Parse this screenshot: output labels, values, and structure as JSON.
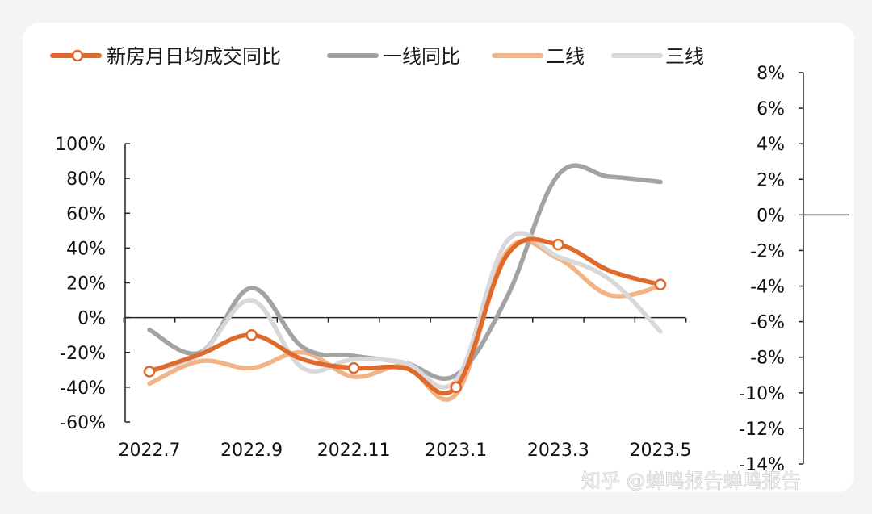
{
  "legend": [
    {
      "label": "新房月日均成交同比",
      "color": "#e06a2b",
      "marker": "circle"
    },
    {
      "label": "一线同比",
      "color": "#a3a3a3"
    },
    {
      "label": "二线",
      "color": "#f2b386"
    },
    {
      "label": "三线",
      "color": "#d8d8d8"
    }
  ],
  "watermark": "知乎 @蝉鸣报告蝉鸣报告",
  "chart_data": {
    "type": "line",
    "x": [
      "2022.7",
      "2022.8",
      "2022.9",
      "2022.10",
      "2022.11",
      "2022.12",
      "2023.1",
      "2023.2",
      "2023.3",
      "2023.4",
      "2023.5"
    ],
    "x_tick_labels": [
      "2022.7",
      "2022.9",
      "2022.11",
      "2023.1",
      "2023.3",
      "2023.5"
    ],
    "series": [
      {
        "name": "新房月日均成交同比",
        "color": "#e06a2b",
        "values": [
          -31,
          -21,
          -10,
          -24,
          -29,
          -29,
          -40,
          36,
          42,
          27,
          19
        ]
      },
      {
        "name": "一线同比",
        "color": "#a3a3a3",
        "values": [
          -7,
          -20,
          17,
          -17,
          -22,
          -26,
          -33,
          12,
          82,
          81,
          78
        ]
      },
      {
        "name": "二线",
        "color": "#f2b386",
        "values": [
          -38,
          -25,
          -29,
          -20,
          -34,
          -28,
          -44,
          38,
          34,
          13,
          18
        ]
      },
      {
        "name": "三线",
        "color": "#d8d8d8",
        "values": [
          -30,
          -21,
          10,
          -29,
          -24,
          -26,
          -36,
          44,
          35,
          22,
          -8
        ]
      }
    ],
    "ylim": [
      -60,
      100
    ],
    "yticks": [
      "100%",
      "80%",
      "60%",
      "40%",
      "20%",
      "0%",
      "-20%",
      "-40%",
      "-60%"
    ],
    "y2lim": [
      -14,
      8
    ],
    "y2ticks": [
      "8%",
      "6%",
      "4%",
      "2%",
      "0%",
      "-2%",
      "-4%",
      "-6%",
      "-8%",
      "-10%",
      "-12%",
      "-14%"
    ]
  }
}
